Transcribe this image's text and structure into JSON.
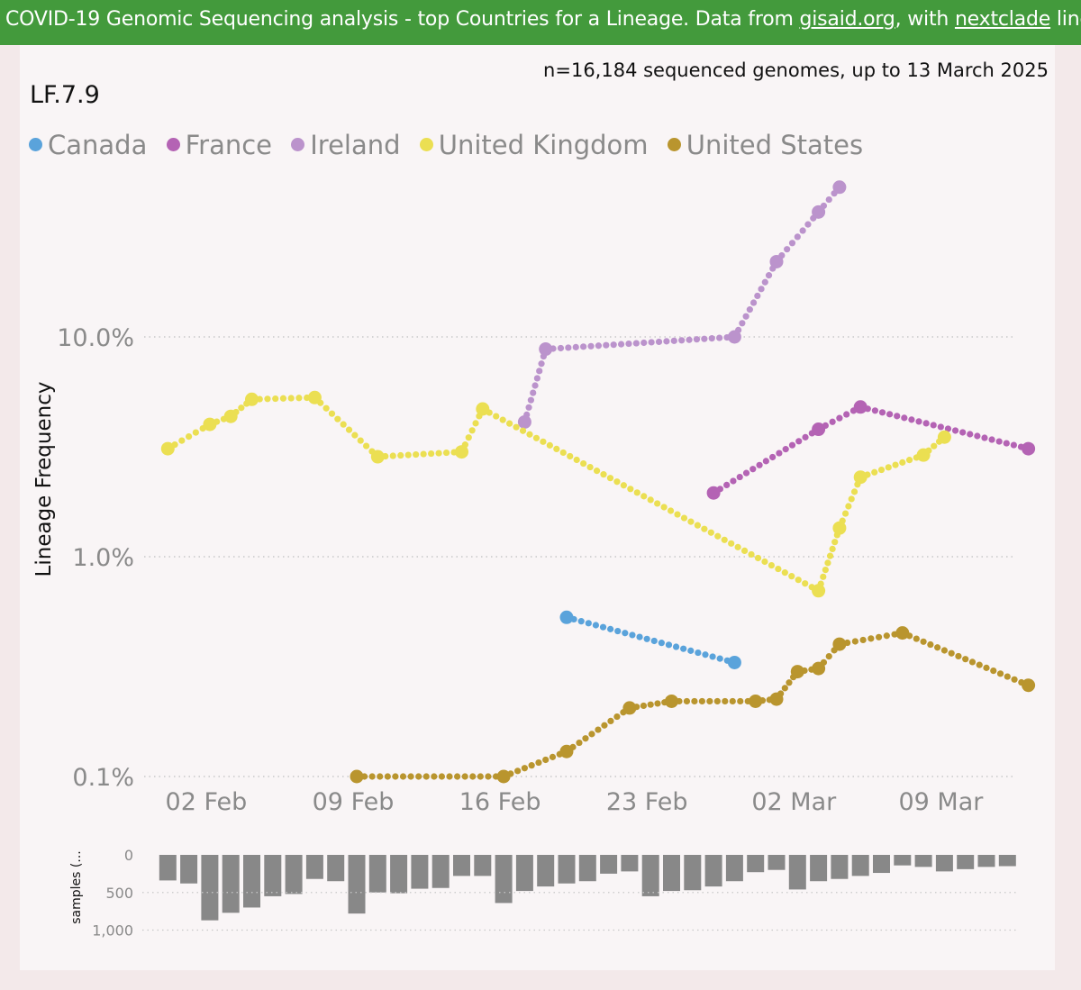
{
  "banner": {
    "text_before": "COVID-19 Genomic Sequencing analysis - top Countries for a Lineage. Data from ",
    "link1": "gisaid.org",
    "text_middle": ", with ",
    "link2": "nextclade",
    "text_after": " lineages Sou"
  },
  "subtitle": "n=16,184 sequenced genomes, up to 13 March 2025",
  "lineage": "LF.7.9",
  "colors": {
    "canada": "#5aa3db",
    "france": "#b463b4",
    "ireland": "#bb93cc",
    "uk": "#ebdf52",
    "us": "#b9952e",
    "bars": "#888888"
  },
  "chart_data": [
    {
      "type": "line",
      "ylabel": "Lineage Frequency",
      "yscale": "log",
      "ylim": [
        0.1,
        40
      ],
      "yticks": [
        {
          "value": 0.1,
          "label": "0.1%"
        },
        {
          "value": 1,
          "label": "1.0%"
        },
        {
          "value": 10,
          "label": "10.0%"
        }
      ],
      "xlim": [
        "2025-01-30",
        "2025-03-14"
      ],
      "xticks": [
        {
          "value": "2025-02-02",
          "label": "02 Feb"
        },
        {
          "value": "2025-02-09",
          "label": "09 Feb"
        },
        {
          "value": "2025-02-16",
          "label": "16 Feb"
        },
        {
          "value": "2025-02-23",
          "label": "23 Feb"
        },
        {
          "value": "2025-03-02",
          "label": "02 Mar"
        },
        {
          "value": "2025-03-09",
          "label": "09 Mar"
        }
      ],
      "legend_position": "top-left",
      "series": [
        {
          "name": "Canada",
          "color_key": "canada",
          "points": [
            [
              "2025-02-19",
              0.53
            ],
            [
              "2025-02-27",
              0.33
            ]
          ]
        },
        {
          "name": "France",
          "color_key": "france",
          "points": [
            [
              "2025-02-26",
              1.95
            ],
            [
              "2025-03-03",
              3.8
            ],
            [
              "2025-03-05",
              4.8
            ],
            [
              "2025-03-13",
              3.1
            ]
          ]
        },
        {
          "name": "Ireland",
          "color_key": "ireland",
          "points": [
            [
              "2025-02-17",
              4.1
            ],
            [
              "2025-02-18",
              8.8
            ],
            [
              "2025-02-27",
              10.0
            ],
            [
              "2025-03-01",
              22
            ],
            [
              "2025-03-03",
              37
            ],
            [
              "2025-03-04",
              48
            ]
          ]
        },
        {
          "name": "United Kingdom",
          "color_key": "uk",
          "points": [
            [
              "2025-01-31",
              3.1
            ],
            [
              "2025-02-02",
              4.0
            ],
            [
              "2025-02-03",
              4.35
            ],
            [
              "2025-02-04",
              5.2
            ],
            [
              "2025-02-07",
              5.3
            ],
            [
              "2025-02-10",
              2.85
            ],
            [
              "2025-02-14",
              3.0
            ],
            [
              "2025-02-15",
              4.7
            ],
            [
              "2025-03-03",
              0.7
            ],
            [
              "2025-03-04",
              1.35
            ],
            [
              "2025-03-05",
              2.3
            ],
            [
              "2025-03-08",
              2.9
            ],
            [
              "2025-03-09",
              3.5
            ]
          ]
        },
        {
          "name": "United States",
          "color_key": "us",
          "points": [
            [
              "2025-02-09",
              0.1
            ],
            [
              "2025-02-16",
              0.1
            ],
            [
              "2025-02-19",
              0.13
            ],
            [
              "2025-02-22",
              0.205
            ],
            [
              "2025-02-24",
              0.22
            ],
            [
              "2025-02-28",
              0.22
            ],
            [
              "2025-03-01",
              0.225
            ],
            [
              "2025-03-02",
              0.3
            ],
            [
              "2025-03-03",
              0.31
            ],
            [
              "2025-03-04",
              0.4
            ],
            [
              "2025-03-07",
              0.45
            ],
            [
              "2025-03-13",
              0.26
            ]
          ]
        }
      ]
    },
    {
      "type": "bar",
      "ylabel": "samples (...",
      "ylim": [
        0,
        1000
      ],
      "yticks": [
        {
          "value": 0,
          "label": "0"
        },
        {
          "value": 500,
          "label": "500"
        },
        {
          "value": 1000,
          "label": "1,000"
        }
      ],
      "start_date": "2025-01-31",
      "values": [
        340,
        380,
        870,
        770,
        700,
        550,
        520,
        320,
        350,
        780,
        500,
        510,
        450,
        440,
        280,
        280,
        640,
        480,
        420,
        380,
        350,
        250,
        220,
        550,
        480,
        470,
        420,
        350,
        230,
        200,
        460,
        350,
        320,
        280,
        240,
        140,
        160,
        220,
        190,
        160,
        150
      ]
    }
  ]
}
